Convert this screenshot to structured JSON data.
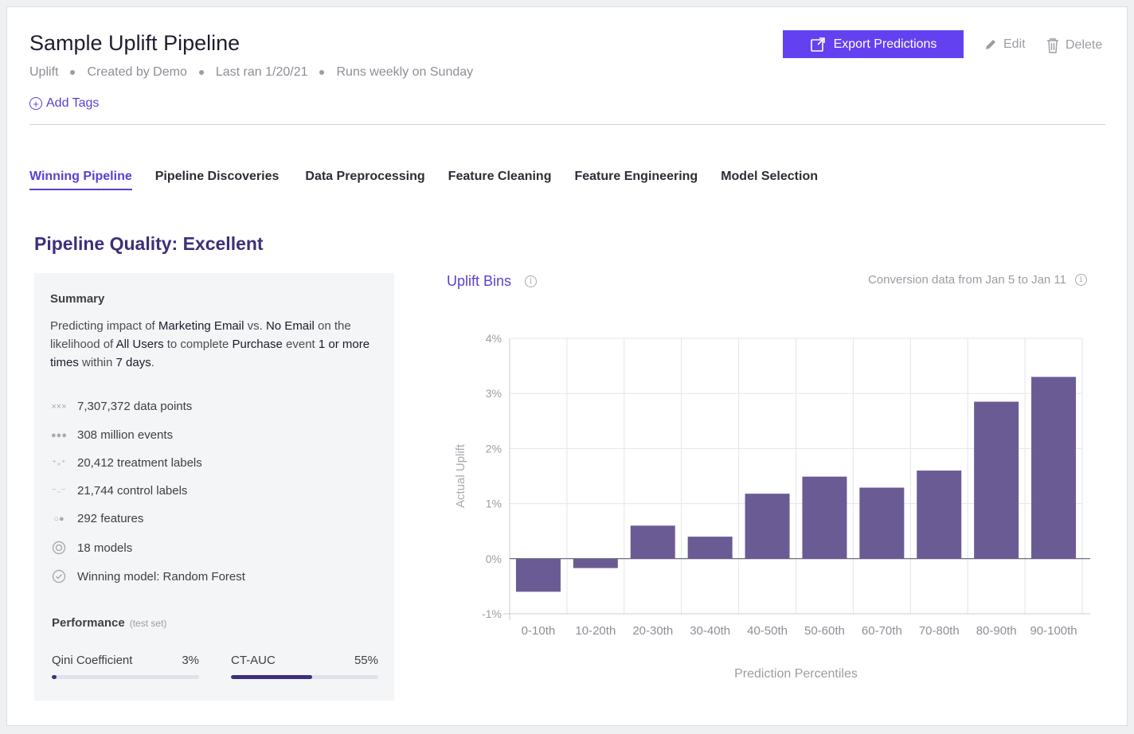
{
  "header": {
    "title": "Sample Uplift Pipeline",
    "type": "Uplift",
    "created_by": "Created by Demo",
    "last_ran": "Last ran 1/20/21",
    "schedule": "Runs weekly on Sunday",
    "add_tags": "Add Tags",
    "export_label": "Export Predictions",
    "edit_label": "Edit",
    "delete_label": "Delete"
  },
  "tabs": [
    {
      "label": "Winning Pipeline",
      "active": true
    },
    {
      "label": "Pipeline Discoveries"
    },
    {
      "label": "Data Preprocessing"
    },
    {
      "label": "Feature Cleaning"
    },
    {
      "label": "Feature Engineering"
    },
    {
      "label": "Model Selection"
    }
  ],
  "quality_title": "Pipeline Quality: Excellent",
  "summary": {
    "heading": "Summary",
    "sentence": {
      "p1": "Predicting impact of ",
      "treatment": "Marketing Email",
      "p2": " vs. ",
      "control": "No Email",
      "p3": " on the likelihood of ",
      "population": "All Users",
      "p4": " to complete ",
      "event": "Purchase",
      "p5": " event ",
      "count": "1 or more times",
      "p6": " within ",
      "window": "7 days",
      "p7": "."
    },
    "stats": [
      {
        "icon": "data-points-icon",
        "label": "7,307,372 data points"
      },
      {
        "icon": "events-icon",
        "label": "308 million events"
      },
      {
        "icon": "treatment-labels-icon",
        "label": "20,412 treatment labels"
      },
      {
        "icon": "control-labels-icon",
        "label": "21,744 control labels"
      },
      {
        "icon": "features-icon",
        "label": "292 features"
      },
      {
        "icon": "models-icon",
        "label": "18 models"
      },
      {
        "icon": "check-circle-icon",
        "label": "Winning model: Random Forest"
      }
    ]
  },
  "performance": {
    "heading": "Performance",
    "subheading": "(test set)",
    "metrics": [
      {
        "label": "Qini Coefficient",
        "value": "3%",
        "fraction": 0.03
      },
      {
        "label": "CT-AUC",
        "value": "55%",
        "fraction": 0.55
      }
    ]
  },
  "chart_header": {
    "title": "Uplift Bins",
    "conversion_note": "Conversion data from Jan 5 to Jan 11"
  },
  "colors": {
    "accent": "#6441f0",
    "bar": "#6b5b95",
    "quality": "#3f2f78"
  },
  "chart_data": {
    "type": "bar",
    "categories": [
      "0-10th",
      "10-20th",
      "20-30th",
      "30-40th",
      "40-50th",
      "50-60th",
      "60-70th",
      "70-80th",
      "80-90th",
      "90-100th"
    ],
    "values": [
      -0.6,
      -0.17,
      0.6,
      0.4,
      1.18,
      1.49,
      1.29,
      1.6,
      2.85,
      3.3
    ],
    "ylabel": "Actual Uplift",
    "xlabel": "Prediction Percentiles",
    "ylim": [
      -1,
      4
    ],
    "yticks": [
      "-1%",
      "0%",
      "1%",
      "2%",
      "3%",
      "4%"
    ],
    "grid": true
  }
}
